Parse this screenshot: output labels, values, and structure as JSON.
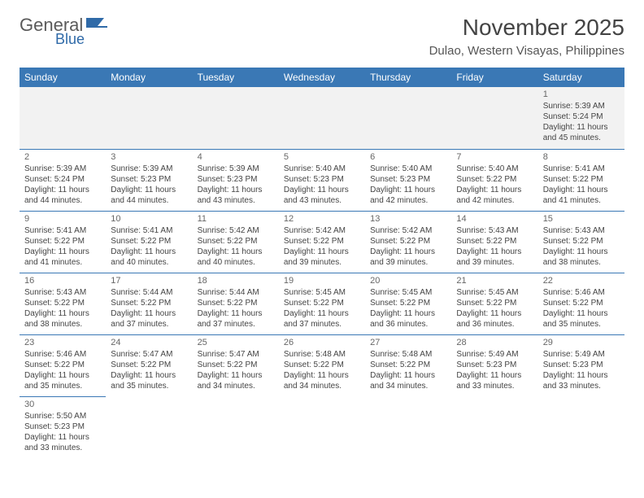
{
  "logo": {
    "text1": "General",
    "text2": "Blue",
    "color1": "#6a6a6a",
    "color2": "#2f6aa8"
  },
  "title": "November 2025",
  "location": "Dulao, Western Visayas, Philippines",
  "daynames": [
    "Sunday",
    "Monday",
    "Tuesday",
    "Wednesday",
    "Thursday",
    "Friday",
    "Saturday"
  ],
  "colors": {
    "headerBg": "#3a78b5",
    "headerText": "#ffffff",
    "rowDivider": "#3a78b5"
  },
  "weeks": [
    [
      null,
      null,
      null,
      null,
      null,
      null,
      {
        "n": "1",
        "sr": "Sunrise: 5:39 AM",
        "ss": "Sunset: 5:24 PM",
        "d1": "Daylight: 11 hours",
        "d2": "and 45 minutes."
      }
    ],
    [
      {
        "n": "2",
        "sr": "Sunrise: 5:39 AM",
        "ss": "Sunset: 5:24 PM",
        "d1": "Daylight: 11 hours",
        "d2": "and 44 minutes."
      },
      {
        "n": "3",
        "sr": "Sunrise: 5:39 AM",
        "ss": "Sunset: 5:23 PM",
        "d1": "Daylight: 11 hours",
        "d2": "and 44 minutes."
      },
      {
        "n": "4",
        "sr": "Sunrise: 5:39 AM",
        "ss": "Sunset: 5:23 PM",
        "d1": "Daylight: 11 hours",
        "d2": "and 43 minutes."
      },
      {
        "n": "5",
        "sr": "Sunrise: 5:40 AM",
        "ss": "Sunset: 5:23 PM",
        "d1": "Daylight: 11 hours",
        "d2": "and 43 minutes."
      },
      {
        "n": "6",
        "sr": "Sunrise: 5:40 AM",
        "ss": "Sunset: 5:23 PM",
        "d1": "Daylight: 11 hours",
        "d2": "and 42 minutes."
      },
      {
        "n": "7",
        "sr": "Sunrise: 5:40 AM",
        "ss": "Sunset: 5:22 PM",
        "d1": "Daylight: 11 hours",
        "d2": "and 42 minutes."
      },
      {
        "n": "8",
        "sr": "Sunrise: 5:41 AM",
        "ss": "Sunset: 5:22 PM",
        "d1": "Daylight: 11 hours",
        "d2": "and 41 minutes."
      }
    ],
    [
      {
        "n": "9",
        "sr": "Sunrise: 5:41 AM",
        "ss": "Sunset: 5:22 PM",
        "d1": "Daylight: 11 hours",
        "d2": "and 41 minutes."
      },
      {
        "n": "10",
        "sr": "Sunrise: 5:41 AM",
        "ss": "Sunset: 5:22 PM",
        "d1": "Daylight: 11 hours",
        "d2": "and 40 minutes."
      },
      {
        "n": "11",
        "sr": "Sunrise: 5:42 AM",
        "ss": "Sunset: 5:22 PM",
        "d1": "Daylight: 11 hours",
        "d2": "and 40 minutes."
      },
      {
        "n": "12",
        "sr": "Sunrise: 5:42 AM",
        "ss": "Sunset: 5:22 PM",
        "d1": "Daylight: 11 hours",
        "d2": "and 39 minutes."
      },
      {
        "n": "13",
        "sr": "Sunrise: 5:42 AM",
        "ss": "Sunset: 5:22 PM",
        "d1": "Daylight: 11 hours",
        "d2": "and 39 minutes."
      },
      {
        "n": "14",
        "sr": "Sunrise: 5:43 AM",
        "ss": "Sunset: 5:22 PM",
        "d1": "Daylight: 11 hours",
        "d2": "and 39 minutes."
      },
      {
        "n": "15",
        "sr": "Sunrise: 5:43 AM",
        "ss": "Sunset: 5:22 PM",
        "d1": "Daylight: 11 hours",
        "d2": "and 38 minutes."
      }
    ],
    [
      {
        "n": "16",
        "sr": "Sunrise: 5:43 AM",
        "ss": "Sunset: 5:22 PM",
        "d1": "Daylight: 11 hours",
        "d2": "and 38 minutes."
      },
      {
        "n": "17",
        "sr": "Sunrise: 5:44 AM",
        "ss": "Sunset: 5:22 PM",
        "d1": "Daylight: 11 hours",
        "d2": "and 37 minutes."
      },
      {
        "n": "18",
        "sr": "Sunrise: 5:44 AM",
        "ss": "Sunset: 5:22 PM",
        "d1": "Daylight: 11 hours",
        "d2": "and 37 minutes."
      },
      {
        "n": "19",
        "sr": "Sunrise: 5:45 AM",
        "ss": "Sunset: 5:22 PM",
        "d1": "Daylight: 11 hours",
        "d2": "and 37 minutes."
      },
      {
        "n": "20",
        "sr": "Sunrise: 5:45 AM",
        "ss": "Sunset: 5:22 PM",
        "d1": "Daylight: 11 hours",
        "d2": "and 36 minutes."
      },
      {
        "n": "21",
        "sr": "Sunrise: 5:45 AM",
        "ss": "Sunset: 5:22 PM",
        "d1": "Daylight: 11 hours",
        "d2": "and 36 minutes."
      },
      {
        "n": "22",
        "sr": "Sunrise: 5:46 AM",
        "ss": "Sunset: 5:22 PM",
        "d1": "Daylight: 11 hours",
        "d2": "and 35 minutes."
      }
    ],
    [
      {
        "n": "23",
        "sr": "Sunrise: 5:46 AM",
        "ss": "Sunset: 5:22 PM",
        "d1": "Daylight: 11 hours",
        "d2": "and 35 minutes."
      },
      {
        "n": "24",
        "sr": "Sunrise: 5:47 AM",
        "ss": "Sunset: 5:22 PM",
        "d1": "Daylight: 11 hours",
        "d2": "and 35 minutes."
      },
      {
        "n": "25",
        "sr": "Sunrise: 5:47 AM",
        "ss": "Sunset: 5:22 PM",
        "d1": "Daylight: 11 hours",
        "d2": "and 34 minutes."
      },
      {
        "n": "26",
        "sr": "Sunrise: 5:48 AM",
        "ss": "Sunset: 5:22 PM",
        "d1": "Daylight: 11 hours",
        "d2": "and 34 minutes."
      },
      {
        "n": "27",
        "sr": "Sunrise: 5:48 AM",
        "ss": "Sunset: 5:22 PM",
        "d1": "Daylight: 11 hours",
        "d2": "and 34 minutes."
      },
      {
        "n": "28",
        "sr": "Sunrise: 5:49 AM",
        "ss": "Sunset: 5:23 PM",
        "d1": "Daylight: 11 hours",
        "d2": "and 33 minutes."
      },
      {
        "n": "29",
        "sr": "Sunrise: 5:49 AM",
        "ss": "Sunset: 5:23 PM",
        "d1": "Daylight: 11 hours",
        "d2": "and 33 minutes."
      }
    ],
    [
      {
        "n": "30",
        "sr": "Sunrise: 5:50 AM",
        "ss": "Sunset: 5:23 PM",
        "d1": "Daylight: 11 hours",
        "d2": "and 33 minutes."
      },
      null,
      null,
      null,
      null,
      null,
      null
    ]
  ]
}
